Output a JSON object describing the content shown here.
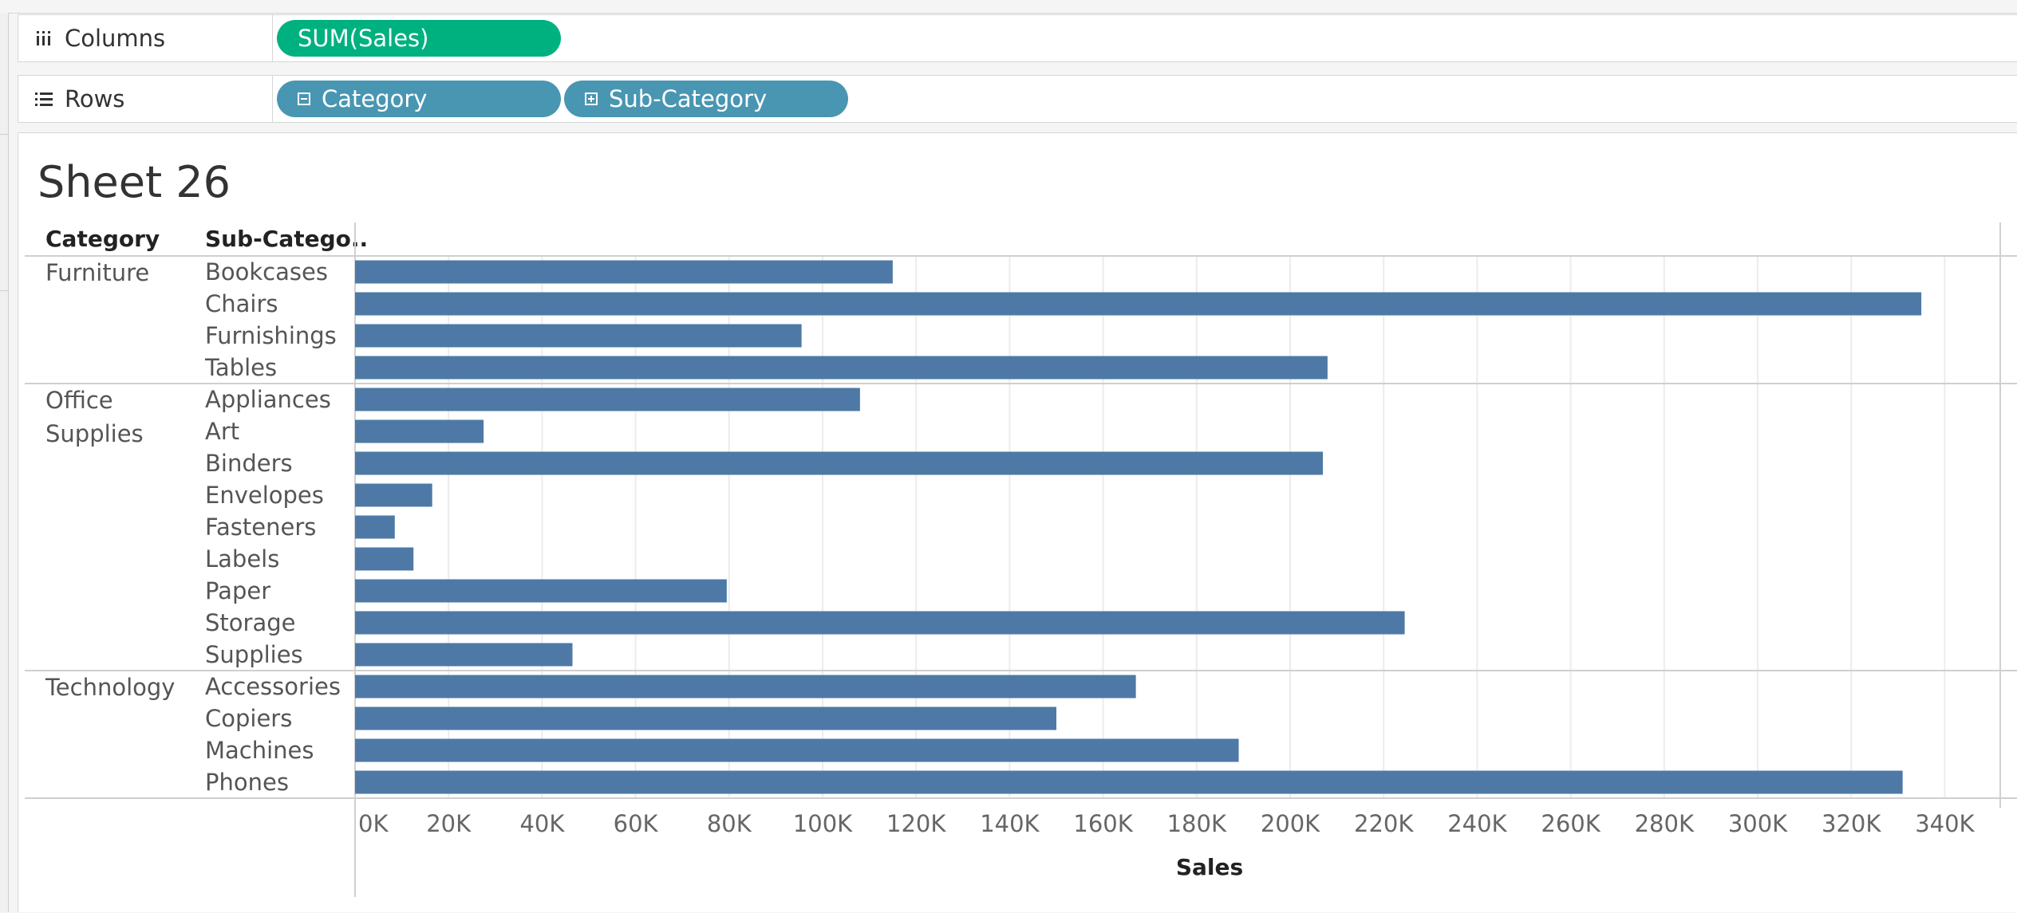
{
  "shelves": {
    "columns": {
      "label": "Columns",
      "icon": "columns-icon",
      "pills": [
        "SUM(Sales)"
      ]
    },
    "rows": {
      "label": "Rows",
      "icon": "rows-icon",
      "pills": [
        "Category",
        "Sub-Category"
      ]
    }
  },
  "sheet": {
    "title": "Sheet 26",
    "headers": {
      "category": "Category",
      "sub_category": "Sub-Catego.."
    }
  },
  "colors": {
    "bar": "#4e79a7",
    "columns_pill": "#00b180",
    "rows_pill": "#4996b2"
  },
  "chart_data": {
    "type": "bar",
    "orientation": "horizontal",
    "xlabel": "Sales",
    "xlim": [
      0,
      350000
    ],
    "x_ticks": [
      "0K",
      "20K",
      "40K",
      "60K",
      "80K",
      "100K",
      "120K",
      "140K",
      "160K",
      "180K",
      "200K",
      "220K",
      "240K",
      "260K",
      "280K",
      "300K",
      "320K",
      "340K"
    ],
    "grid": true,
    "groups": [
      {
        "category": [
          "Furniture"
        ],
        "items": [
          {
            "sub_category": "Bookcases",
            "value": 115000
          },
          {
            "sub_category": "Chairs",
            "value": 335000
          },
          {
            "sub_category": "Furnishings",
            "value": 95500
          },
          {
            "sub_category": "Tables",
            "value": 208000
          }
        ]
      },
      {
        "category": [
          "Office",
          "Supplies"
        ],
        "items": [
          {
            "sub_category": "Appliances",
            "value": 108000
          },
          {
            "sub_category": "Art",
            "value": 27500
          },
          {
            "sub_category": "Binders",
            "value": 207000
          },
          {
            "sub_category": "Envelopes",
            "value": 16500
          },
          {
            "sub_category": "Fasteners",
            "value": 8500
          },
          {
            "sub_category": "Labels",
            "value": 12500
          },
          {
            "sub_category": "Paper",
            "value": 79500
          },
          {
            "sub_category": "Storage",
            "value": 224500
          },
          {
            "sub_category": "Supplies",
            "value": 46500
          }
        ]
      },
      {
        "category": [
          "Technology"
        ],
        "items": [
          {
            "sub_category": "Accessories",
            "value": 167000
          },
          {
            "sub_category": "Copiers",
            "value": 150000
          },
          {
            "sub_category": "Machines",
            "value": 189000
          },
          {
            "sub_category": "Phones",
            "value": 331000
          }
        ]
      }
    ]
  }
}
